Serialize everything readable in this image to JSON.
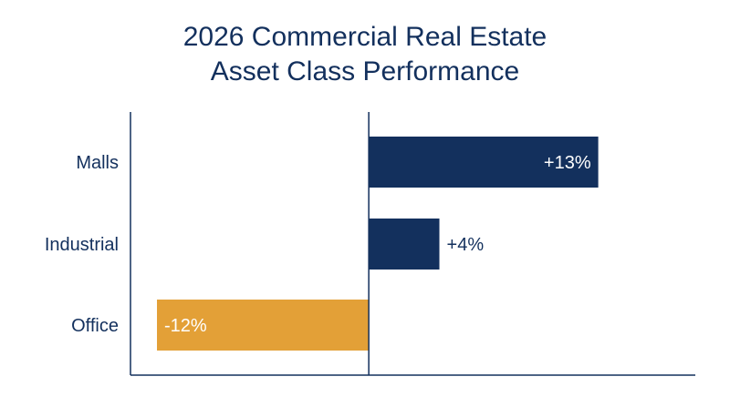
{
  "chart_data": {
    "type": "bar",
    "orientation": "horizontal",
    "title": [
      "2026 Commercial Real Estate",
      "Asset Class Performance"
    ],
    "categories": [
      "Malls",
      "Industrial",
      "Office"
    ],
    "values": [
      13,
      4,
      -12
    ],
    "data_labels": [
      "+13%",
      "+4%",
      "-12%"
    ],
    "xlim": [
      -13.5,
      18.5
    ],
    "grid": false,
    "colors": {
      "positive": "#13305d",
      "negative": "#e3a037",
      "axis": "#13305d",
      "text": "#13305d",
      "label_on_bar": "#ffffff"
    }
  }
}
